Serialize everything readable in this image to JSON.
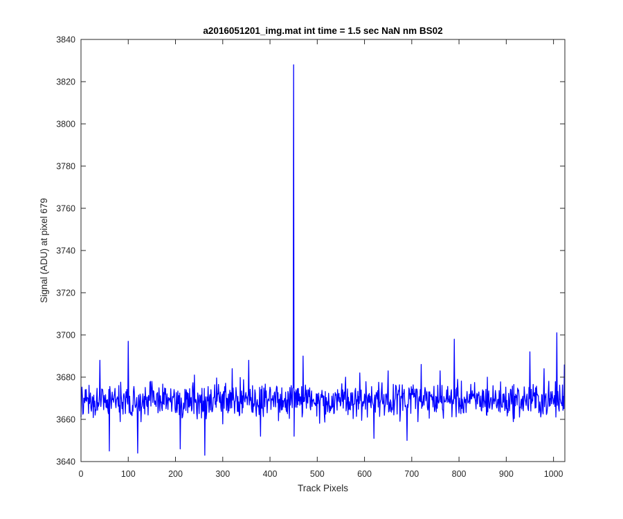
{
  "chart_data": {
    "type": "line",
    "title": "a2016051201_img.mat int time = 1.5 sec  NaN nm BS02",
    "xlabel": "Track Pixels",
    "ylabel": "Signal (ADU) at pixel 679",
    "xlim": [
      0,
      1024
    ],
    "ylim": [
      3640,
      3840
    ],
    "xticks": [
      0,
      100,
      200,
      300,
      400,
      500,
      600,
      700,
      800,
      900,
      1000
    ],
    "yticks": [
      3640,
      3660,
      3680,
      3700,
      3720,
      3740,
      3760,
      3780,
      3800,
      3820,
      3840
    ],
    "grid": false,
    "legend": "none",
    "series": [
      {
        "color": "#0000ff",
        "baseline_mean": 3669,
        "baseline_spread": 12,
        "num_points": 1024,
        "x": [
          0,
          5,
          15,
          30,
          40,
          60,
          80,
          100,
          120,
          150,
          180,
          210,
          240,
          262,
          290,
          320,
          355,
          380,
          410,
          445,
          449,
          450,
          451,
          455,
          470,
          500,
          530,
          560,
          590,
          620,
          650,
          690,
          720,
          760,
          790,
          820,
          860,
          900,
          950,
          980,
          1007,
          1024
        ],
        "values": [
          3661,
          3663,
          3670,
          3662,
          3688,
          3645,
          3676,
          3697,
          3644,
          3678,
          3665,
          3646,
          3681,
          3643,
          3672,
          3684,
          3688,
          3652,
          3673,
          3676,
          3675,
          3828,
          3652,
          3674,
          3690,
          3672,
          3665,
          3680,
          3682,
          3651,
          3683,
          3650,
          3686,
          3683,
          3698,
          3668,
          3680,
          3665,
          3692,
          3684,
          3701,
          3686
        ]
      }
    ]
  }
}
